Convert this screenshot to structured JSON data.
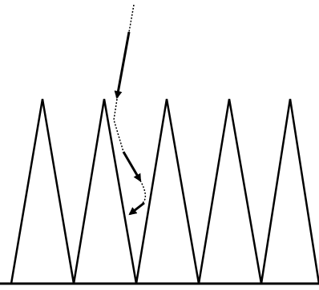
{
  "diagram": {
    "type": "light-trapping-sawtooth-surface",
    "colors": {
      "background": "#ffffff",
      "stroke": "#000000"
    },
    "peaks": 5,
    "ray": {
      "segments": 3,
      "style": "dotted-with-arrowheads"
    }
  }
}
